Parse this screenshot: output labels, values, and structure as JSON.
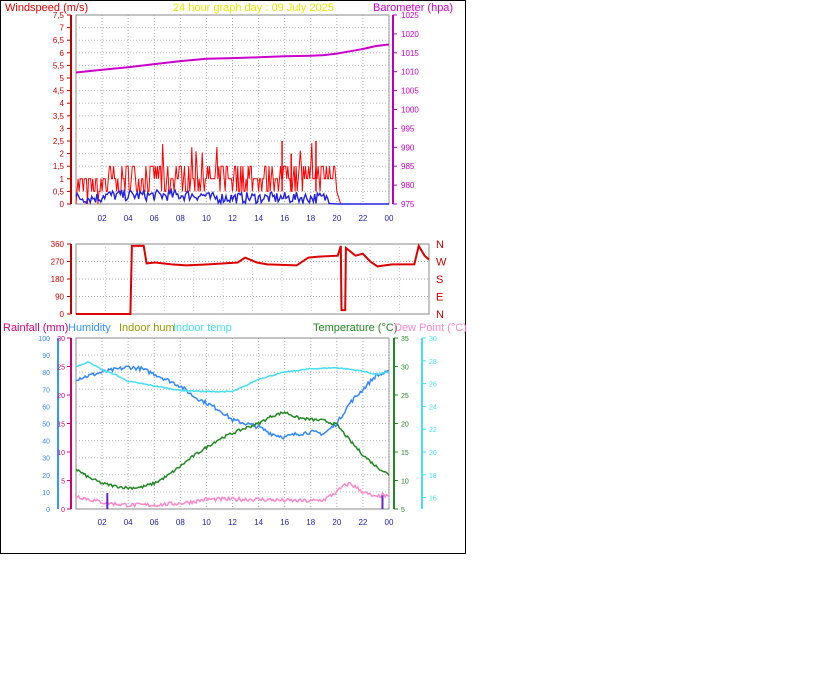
{
  "panel1": {
    "title": "24 hour graph day : 09 July 2025",
    "left_label": "Windspeed (m/s)",
    "right_label": "Barometer (hpa)",
    "left_ticks": [
      "0",
      "0,5",
      "1",
      "1,5",
      "2",
      "2,5",
      "3",
      "3,5",
      "4",
      "4,5",
      "5",
      "5,5",
      "6",
      "6,5",
      "7",
      "7,5"
    ],
    "right_ticks": [
      "975",
      "980",
      "985",
      "990",
      "995",
      "1000",
      "1005",
      "1010",
      "1015",
      "1020",
      "1025"
    ],
    "x_ticks": [
      "02",
      "04",
      "06",
      "08",
      "10",
      "12",
      "14",
      "16",
      "18",
      "20",
      "22",
      "00"
    ]
  },
  "panel2": {
    "left_ticks": [
      "0",
      "90",
      "180",
      "270",
      "360"
    ],
    "right_ticks": [
      "N",
      "E",
      "S",
      "W",
      "N"
    ]
  },
  "panel3": {
    "labels": {
      "rainfall": "Rainfall (mm)",
      "humidity": "Humidity",
      "indoor_hum": "Indoor hum",
      "indoor_temp": "Indoor temp",
      "temperature": "Temperature (°C)",
      "dew_point": "Dew Point (°C)"
    },
    "rain_ticks": [
      "0",
      "5",
      "10",
      "15",
      "20",
      "25",
      "30"
    ],
    "hum_ticks": [
      "0",
      "10",
      "20",
      "30",
      "40",
      "50",
      "60",
      "70",
      "80",
      "90",
      "100"
    ],
    "temp_ticks": [
      "5",
      "10",
      "15",
      "20",
      "25",
      "30",
      "35"
    ],
    "indoor_temp_ticks": [
      "16",
      "18",
      "20",
      "22",
      "24",
      "26",
      "28",
      "30"
    ],
    "x_ticks": [
      "02",
      "04",
      "06",
      "08",
      "10",
      "12",
      "14",
      "16",
      "18",
      "20",
      "22",
      "00"
    ]
  },
  "colors": {
    "wind_speed": "#ff0000",
    "wind_gust": "#2222dd",
    "barometer": "#cc00cc",
    "direction": "#dd0000",
    "humidity": "#3388ff",
    "indoor_temp": "#44e0f0",
    "temperature": "#228822",
    "dew_point": "#ff88cc",
    "rain": "#6622cc"
  },
  "chart_data": [
    {
      "type": "line",
      "title": "24 hour graph day : 09 July 2025",
      "ylabel": "Windspeed (m/s)",
      "y2label": "Barometer (hpa)",
      "x_range_hours": [
        0,
        24
      ],
      "ylim": [
        0,
        7.5
      ],
      "y2lim": [
        975,
        1025
      ],
      "series": [
        {
          "name": "Barometer (hpa)",
          "axis": "right",
          "x": [
            0,
            2,
            4,
            6,
            8,
            10,
            12,
            14,
            16,
            18,
            19,
            20,
            21,
            22,
            23,
            24
          ],
          "values": [
            1009.8,
            1010.5,
            1011.2,
            1012.0,
            1012.8,
            1013.4,
            1013.6,
            1013.8,
            1014.1,
            1014.2,
            1014.4,
            1014.8,
            1015.4,
            1016.0,
            1016.8,
            1017.2
          ]
        }
      ]
    },
    {
      "type": "line",
      "ylim": [
        0,
        360
      ],
      "x_range_hours": [
        0,
        24
      ],
      "x": [
        0,
        3.7,
        3.8,
        4.6,
        4.8,
        5.4,
        6.5,
        7.5,
        9,
        11,
        11.5,
        12.3,
        13,
        15,
        15.8,
        16.5,
        17.8,
        18,
        18.05,
        18.3,
        18.35,
        19,
        19.5,
        20,
        20.5,
        21.5,
        23,
        23.3,
        23.7,
        24
      ],
      "values": [
        0,
        0,
        350,
        350,
        260,
        265,
        255,
        250,
        255,
        265,
        290,
        265,
        255,
        250,
        290,
        295,
        300,
        350,
        20,
        20,
        340,
        300,
        310,
        270,
        245,
        255,
        255,
        350,
        300,
        280
      ]
    },
    {
      "type": "line",
      "ylabel": "Rainfall (mm)",
      "x_range_hours": [
        0,
        24
      ],
      "series": [
        {
          "name": "Humidity",
          "axis": "humidity",
          "x": [
            0,
            2,
            4,
            5,
            6,
            8,
            9,
            10,
            11,
            12,
            13,
            14,
            15,
            16,
            17,
            18,
            19,
            20,
            21,
            22,
            23,
            24
          ],
          "values": [
            76,
            80,
            83,
            82,
            79,
            72,
            66,
            62,
            58,
            52,
            50,
            48,
            44,
            42,
            44,
            45,
            44,
            50,
            62,
            70,
            78,
            80
          ]
        },
        {
          "name": "Indoor temp",
          "axis": "indoor_temp",
          "x": [
            0,
            1,
            2,
            3,
            4,
            6,
            8,
            10,
            12,
            13,
            14,
            16,
            18,
            20,
            22,
            23,
            24
          ],
          "values": [
            27.5,
            27.9,
            27.2,
            26.8,
            26.2,
            25.8,
            25.4,
            25.3,
            25.3,
            25.8,
            26.4,
            27.0,
            27.3,
            27.4,
            27.1,
            26.8,
            27.0
          ]
        },
        {
          "name": "Temperature (°C)",
          "axis": "temperature",
          "x": [
            0,
            1,
            2,
            3,
            4,
            5,
            6,
            7,
            8,
            9,
            10,
            11,
            12,
            13,
            14,
            15,
            16,
            17,
            18,
            19,
            20,
            21,
            22,
            23,
            24
          ],
          "values": [
            12,
            10.5,
            9.5,
            9,
            8.7,
            8.8,
            9.5,
            10.8,
            12.5,
            14.3,
            15.8,
            17.3,
            18.3,
            19.2,
            20.0,
            21.3,
            22.0,
            21.0,
            20.7,
            20.5,
            19.8,
            17,
            14.5,
            12.5,
            11
          ]
        },
        {
          "name": "Dew Point (°C)",
          "axis": "temperature",
          "x": [
            0,
            1,
            2,
            3,
            4,
            6,
            8,
            9,
            10,
            12,
            14,
            16,
            18,
            19,
            20,
            20.5,
            21,
            22,
            23,
            23.5,
            24
          ],
          "values": [
            7.3,
            6.7,
            6.2,
            5.9,
            5.7,
            5.7,
            6.0,
            6.3,
            6.7,
            6.7,
            6.7,
            6.5,
            6.4,
            6.6,
            8,
            9,
            9.5,
            8,
            7,
            7.5,
            7
          ]
        },
        {
          "name": "Rainfall (mm)",
          "axis": "rain",
          "x": [
            2.4,
            2.4,
            23.5,
            23.5
          ],
          "values": [
            0,
            2.8,
            0,
            2.4
          ]
        }
      ],
      "humidity_lim": [
        0,
        100
      ],
      "rain_lim": [
        0,
        30
      ],
      "temperature_lim": [
        5,
        35
      ],
      "indoor_temp_lim": [
        15,
        30
      ]
    }
  ]
}
